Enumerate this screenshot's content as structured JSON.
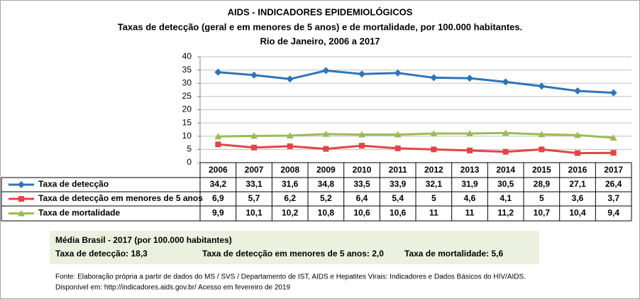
{
  "chart_data": {
    "type": "line",
    "title": "AIDS - INDICADORES EPIDEMIOLÓGICOS",
    "subtitle": [
      "Taxas de detecção (geral e em menores de 5 anos) e de mortalidade, por 100.000 habitantes.",
      "Rio de Janeiro, 2006 a 2017"
    ],
    "categories": [
      "2006",
      "2007",
      "2008",
      "2009",
      "2010",
      "2011",
      "2012",
      "2013",
      "2014",
      "2015",
      "2016",
      "2017"
    ],
    "series": [
      {
        "name": "Taxa de detecção",
        "color": "#2e75b6",
        "marker": "diamond",
        "values": [
          34.2,
          33.1,
          31.6,
          34.8,
          33.5,
          33.9,
          32.1,
          31.9,
          30.5,
          28.9,
          27.1,
          26.4
        ],
        "value_labels": [
          "34,2",
          "33,1",
          "31,6",
          "34,8",
          "33,5",
          "33,9",
          "32,1",
          "31,9",
          "30,5",
          "28,9",
          "27,1",
          "26,4"
        ]
      },
      {
        "name": "Taxa de detecção em menores de 5 anos",
        "color": "#e04646",
        "marker": "square",
        "values": [
          6.9,
          5.7,
          6.2,
          5.2,
          6.4,
          5.4,
          5,
          4.6,
          4.1,
          5,
          3.6,
          3.7
        ],
        "value_labels": [
          "6,9",
          "5,7",
          "6,2",
          "5,2",
          "6,4",
          "5,4",
          "5",
          "4,6",
          "4,1",
          "5",
          "3,6",
          "3,7"
        ]
      },
      {
        "name": "Taxa de mortalidade",
        "color": "#9bbb59",
        "marker": "triangle",
        "values": [
          9.9,
          10.1,
          10.2,
          10.8,
          10.6,
          10.6,
          11,
          11,
          11.2,
          10.7,
          10.4,
          9.4
        ],
        "value_labels": [
          "9,9",
          "10,1",
          "10,2",
          "10,8",
          "10,6",
          "10,6",
          "11",
          "11",
          "11,2",
          "10,7",
          "10,4",
          "9,4"
        ]
      }
    ],
    "ylim": [
      0,
      40
    ],
    "yticks": [
      0,
      5,
      10,
      15,
      20,
      25,
      30,
      35,
      40
    ],
    "grid": true
  },
  "summary": {
    "title": "Média Brasil - 2017  (por 100.000 habitantes)",
    "items": [
      "Taxa de detecção: 18,3",
      "Taxa  de detecção em menores de 5 anos: 2,0",
      "Taxa  de mortalidade: 5,6"
    ]
  },
  "source": [
    "Fonte: Elaboração própria a partir de dados do MS / SVS / Departamento de IST, AIDS e Hepatites Virais: Indicadores e Dados Básicos do HIV/AIDS.",
    "Disponível em: http://indicadores.aids.gov.br/   Acesso em fevereiro de 2019"
  ]
}
